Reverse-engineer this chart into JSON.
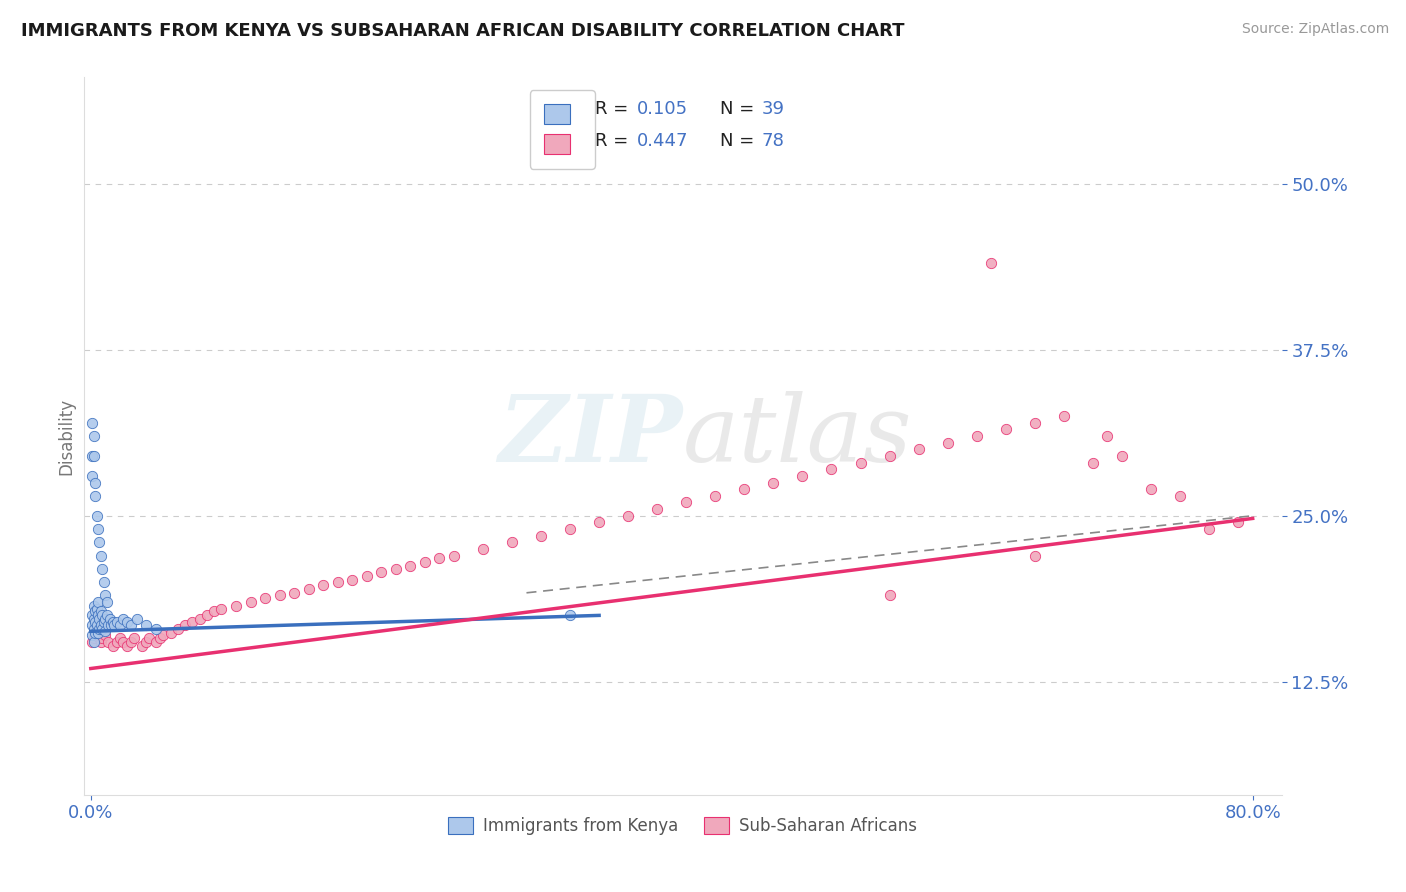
{
  "title": "IMMIGRANTS FROM KENYA VS SUBSAHARAN AFRICAN DISABILITY CORRELATION CHART",
  "source": "Source: ZipAtlas.com",
  "ylabel": "Disability",
  "watermark": "ZIPatlas",
  "legend_1_r": "0.105",
  "legend_1_n": "39",
  "legend_2_r": "0.447",
  "legend_2_n": "78",
  "color_kenya": "#adc8eb",
  "color_subsaharan": "#f0a8bc",
  "line_color_kenya": "#3a6fbe",
  "line_color_subsaharan": "#e83070",
  "accent_blue": "#4472c4",
  "yticks_labels": [
    "12.5%",
    "25.0%",
    "37.5%",
    "50.0%"
  ],
  "ytick_vals": [
    0.125,
    0.25,
    0.375,
    0.5
  ],
  "xlim": [
    0.0,
    0.8
  ],
  "ylim": [
    0.05,
    0.55
  ],
  "kenya_x": [
    0.001,
    0.001,
    0.001,
    0.002,
    0.002,
    0.002,
    0.002,
    0.003,
    0.003,
    0.003,
    0.004,
    0.004,
    0.005,
    0.005,
    0.005,
    0.006,
    0.006,
    0.007,
    0.007,
    0.008,
    0.008,
    0.009,
    0.01,
    0.01,
    0.011,
    0.012,
    0.013,
    0.014,
    0.015,
    0.016,
    0.018,
    0.02,
    0.022,
    0.025,
    0.028,
    0.032,
    0.038,
    0.045,
    0.33
  ],
  "kenya_y": [
    0.175,
    0.168,
    0.16,
    0.182,
    0.172,
    0.165,
    0.155,
    0.178,
    0.17,
    0.162,
    0.18,
    0.168,
    0.185,
    0.175,
    0.162,
    0.172,
    0.165,
    0.178,
    0.168,
    0.175,
    0.165,
    0.17,
    0.172,
    0.163,
    0.175,
    0.168,
    0.172,
    0.168,
    0.17,
    0.168,
    0.17,
    0.168,
    0.172,
    0.17,
    0.168,
    0.172,
    0.168,
    0.165,
    0.175
  ],
  "kenya_y_outliers": [
    0.28,
    0.295,
    0.31,
    0.265,
    0.25,
    0.24,
    0.23,
    0.22,
    0.21,
    0.2,
    0.19,
    0.185,
    0.32,
    0.295,
    0.275
  ],
  "kenya_x_outliers": [
    0.001,
    0.001,
    0.002,
    0.003,
    0.004,
    0.005,
    0.006,
    0.007,
    0.008,
    0.009,
    0.01,
    0.011,
    0.001,
    0.002,
    0.003
  ],
  "subsaharan_x": [
    0.001,
    0.002,
    0.003,
    0.004,
    0.005,
    0.006,
    0.007,
    0.008,
    0.01,
    0.012,
    0.015,
    0.018,
    0.02,
    0.022,
    0.025,
    0.028,
    0.03,
    0.035,
    0.038,
    0.04,
    0.045,
    0.048,
    0.05,
    0.055,
    0.06,
    0.065,
    0.07,
    0.075,
    0.08,
    0.085,
    0.09,
    0.1,
    0.11,
    0.12,
    0.13,
    0.14,
    0.15,
    0.16,
    0.17,
    0.18,
    0.19,
    0.2,
    0.21,
    0.22,
    0.23,
    0.24,
    0.25,
    0.27,
    0.29,
    0.31,
    0.33,
    0.35,
    0.37,
    0.39,
    0.41,
    0.43,
    0.45,
    0.47,
    0.49,
    0.51,
    0.53,
    0.55,
    0.57,
    0.59,
    0.61,
    0.63,
    0.65,
    0.67,
    0.69,
    0.71,
    0.73,
    0.75,
    0.77,
    0.79,
    0.62,
    0.7,
    0.55,
    0.65
  ],
  "subsaharan_y": [
    0.155,
    0.158,
    0.16,
    0.162,
    0.16,
    0.158,
    0.155,
    0.158,
    0.16,
    0.155,
    0.152,
    0.155,
    0.158,
    0.155,
    0.152,
    0.155,
    0.158,
    0.152,
    0.155,
    0.158,
    0.155,
    0.158,
    0.16,
    0.162,
    0.165,
    0.168,
    0.17,
    0.172,
    0.175,
    0.178,
    0.18,
    0.182,
    0.185,
    0.188,
    0.19,
    0.192,
    0.195,
    0.198,
    0.2,
    0.202,
    0.205,
    0.208,
    0.21,
    0.212,
    0.215,
    0.218,
    0.22,
    0.225,
    0.23,
    0.235,
    0.24,
    0.245,
    0.25,
    0.255,
    0.26,
    0.265,
    0.27,
    0.275,
    0.28,
    0.285,
    0.29,
    0.295,
    0.3,
    0.305,
    0.31,
    0.315,
    0.32,
    0.325,
    0.29,
    0.295,
    0.27,
    0.265,
    0.24,
    0.245,
    0.44,
    0.31,
    0.19,
    0.22
  ],
  "kenya_line": {
    "x0": 0.0,
    "y0": 0.163,
    "x1": 0.35,
    "y1": 0.175
  },
  "subsaharan_line": {
    "x0": 0.0,
    "y0": 0.135,
    "x1": 0.8,
    "y1": 0.248
  },
  "dashed_line": {
    "x0": 0.3,
    "y0": 0.192,
    "x1": 0.8,
    "y1": 0.25
  }
}
